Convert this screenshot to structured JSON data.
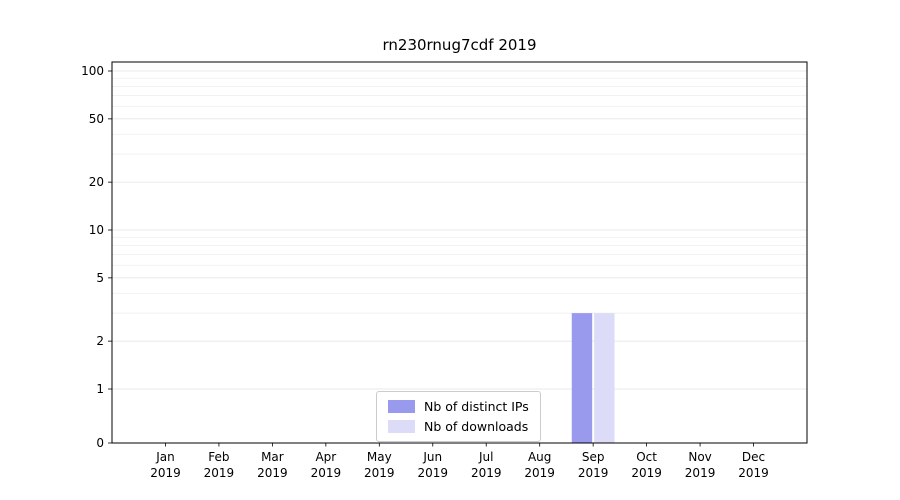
{
  "chart_data": {
    "type": "bar",
    "title": "rn230rnug7cdf 2019",
    "categories": [
      "Jan",
      "Feb",
      "Mar",
      "Apr",
      "May",
      "Jun",
      "Jul",
      "Aug",
      "Sep",
      "Oct",
      "Nov",
      "Dec"
    ],
    "category_year": "2019",
    "series": [
      {
        "name": "Nb of distinct IPs",
        "color": "#9999ee",
        "values": [
          0,
          0,
          0,
          0,
          0,
          0,
          0,
          0,
          3,
          0,
          0,
          0
        ]
      },
      {
        "name": "Nb of downloads",
        "color": "#dcdcf8",
        "values": [
          0,
          0,
          0,
          0,
          0,
          0,
          0,
          0,
          3,
          0,
          0,
          0
        ]
      }
    ],
    "yticks": [
      0,
      1,
      2,
      5,
      10,
      20,
      50,
      100
    ],
    "yscale": "symlog",
    "ylim": [
      0,
      115
    ],
    "grid": "horizontal",
    "legend_position": "lower-center"
  }
}
